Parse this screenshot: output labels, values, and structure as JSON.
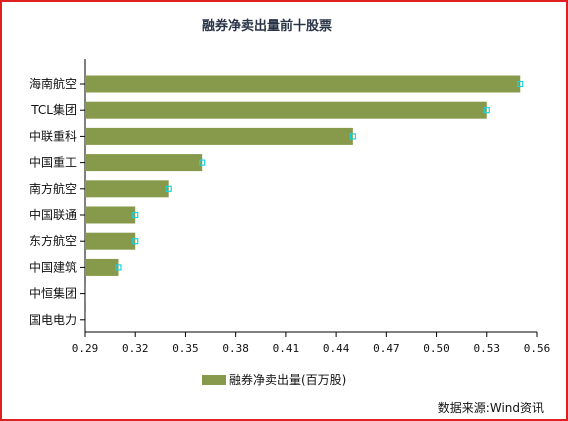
{
  "colors": {
    "frame": "#e0201f",
    "bar": "#87994a",
    "marker": "#19d3e0",
    "axis": "#000000",
    "title": "#2a3548"
  },
  "chart_data": {
    "type": "bar",
    "orientation": "horizontal",
    "title": "融券净卖出量前十股票",
    "categories": [
      "海南航空",
      "TCL集团",
      "中联重科",
      "中国重工",
      "南方航空",
      "中国联通",
      "东方航空",
      "中国建筑",
      "中恒集团",
      "国电电力"
    ],
    "series": [
      {
        "name": "融券净卖出量(百万股)",
        "values": [
          0.55,
          0.53,
          0.45,
          0.36,
          0.34,
          0.32,
          0.32,
          0.31,
          0.29,
          0.29
        ]
      }
    ],
    "xlim": [
      0.29,
      0.56
    ],
    "xticks": [
      "0.29",
      "0.32",
      "0.35",
      "0.38",
      "0.41",
      "0.44",
      "0.47",
      "0.50",
      "0.53",
      "0.56"
    ],
    "legend_position": "bottom-center",
    "grid": false,
    "source": "数据来源:Wind资讯"
  }
}
